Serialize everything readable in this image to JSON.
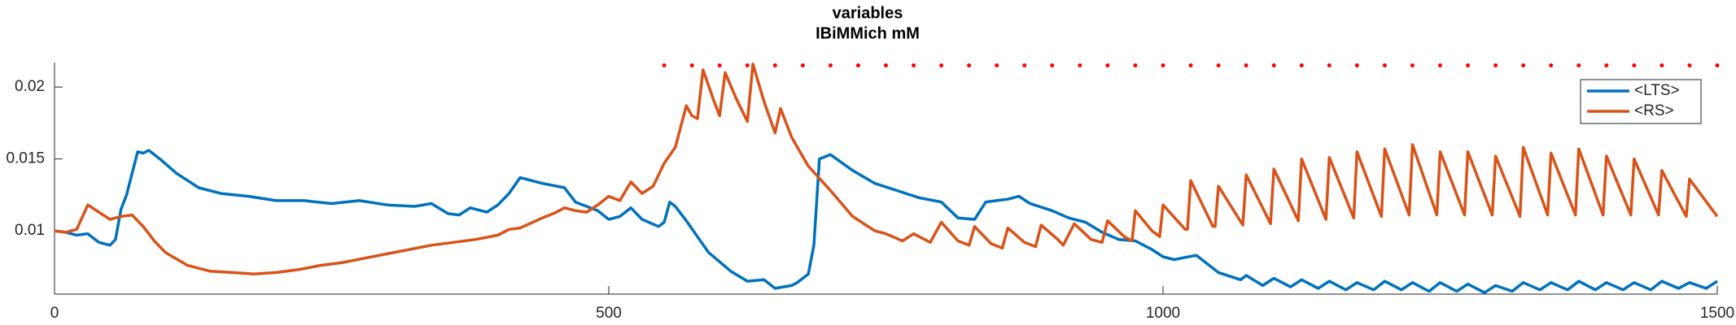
{
  "chart_data": {
    "type": "line",
    "title": "variables",
    "subtitle": "IBiMMich mM",
    "xlim": [
      0,
      1500
    ],
    "xticks": [
      0,
      500,
      1000,
      1500
    ],
    "ylim": [
      0.0056,
      0.0217
    ],
    "yticks": [
      0.01,
      0.015,
      0.02
    ],
    "legend": "upper right",
    "series": [
      {
        "name": "<LTS>",
        "color": "#0072bd",
        "x": [
          0,
          10,
          20,
          30,
          40,
          50,
          55,
          60,
          65,
          70,
          75,
          80,
          85,
          95,
          110,
          130,
          150,
          175,
          200,
          225,
          250,
          275,
          300,
          325,
          340,
          355,
          365,
          375,
          390,
          400,
          410,
          420,
          440,
          460,
          470,
          490,
          500,
          510,
          520,
          530,
          545,
          550,
          555,
          560,
          570,
          590,
          610,
          625,
          640,
          650,
          665,
          670,
          680,
          685,
          690,
          700,
          720,
          740,
          760,
          780,
          800,
          815,
          830,
          840,
          850,
          860,
          870,
          880,
          900,
          915,
          930,
          945,
          960,
          975,
          990,
          1000,
          1010,
          1030,
          1050,
          1070,
          1075,
          1090,
          1100,
          1115,
          1125,
          1140,
          1150,
          1165,
          1175,
          1190,
          1200,
          1215,
          1225,
          1240,
          1250,
          1265,
          1275,
          1290,
          1300,
          1315,
          1325,
          1340,
          1350,
          1365,
          1375,
          1390,
          1400,
          1415,
          1425,
          1440,
          1450,
          1465,
          1475,
          1490,
          1500
        ],
        "values": [
          0.01,
          0.0099,
          0.0097,
          0.0098,
          0.0092,
          0.009,
          0.0094,
          0.0115,
          0.0125,
          0.014,
          0.0155,
          0.0154,
          0.0156,
          0.015,
          0.014,
          0.013,
          0.0126,
          0.0124,
          0.0121,
          0.0121,
          0.0119,
          0.0121,
          0.0118,
          0.0117,
          0.0119,
          0.0112,
          0.0111,
          0.0116,
          0.0113,
          0.0118,
          0.0126,
          0.0137,
          0.0133,
          0.013,
          0.012,
          0.0114,
          0.0108,
          0.011,
          0.0116,
          0.0108,
          0.0103,
          0.0106,
          0.012,
          0.0117,
          0.0107,
          0.0085,
          0.0072,
          0.0065,
          0.0066,
          0.006,
          0.0062,
          0.0064,
          0.007,
          0.009,
          0.015,
          0.0153,
          0.0142,
          0.0133,
          0.0128,
          0.0123,
          0.012,
          0.0109,
          0.0108,
          0.012,
          0.0121,
          0.0122,
          0.0124,
          0.0119,
          0.0114,
          0.0109,
          0.0106,
          0.0099,
          0.0094,
          0.0093,
          0.0087,
          0.0082,
          0.008,
          0.0083,
          0.0071,
          0.0066,
          0.0069,
          0.0062,
          0.0067,
          0.0061,
          0.0066,
          0.006,
          0.0065,
          0.0059,
          0.0064,
          0.0059,
          0.0065,
          0.0059,
          0.0064,
          0.0058,
          0.0064,
          0.0058,
          0.0063,
          0.0057,
          0.0062,
          0.0058,
          0.0064,
          0.0059,
          0.0064,
          0.0059,
          0.0065,
          0.0059,
          0.0064,
          0.0059,
          0.0064,
          0.0059,
          0.0065,
          0.006,
          0.0064,
          0.006,
          0.0065
        ]
      },
      {
        "name": "<RS>",
        "color": "#d95319",
        "x": [
          0,
          10,
          20,
          30,
          40,
          50,
          60,
          70,
          80,
          90,
          100,
          120,
          140,
          160,
          180,
          200,
          220,
          240,
          260,
          280,
          300,
          320,
          340,
          360,
          380,
          400,
          410,
          420,
          440,
          450,
          460,
          470,
          480,
          490,
          500,
          510,
          520,
          530,
          540,
          550,
          560,
          570,
          575,
          580,
          585,
          595,
          600,
          605,
          615,
          625,
          630,
          640,
          650,
          655,
          665,
          680,
          700,
          720,
          740,
          750,
          765,
          775,
          790,
          800,
          815,
          825,
          830,
          845,
          855,
          860,
          875,
          885,
          890,
          905,
          910,
          920,
          935,
          945,
          950,
          965,
          972,
          975,
          990,
          997,
          1000,
          1020,
          1022,
          1025,
          1045,
          1047,
          1050,
          1072,
          1075,
          1097,
          1100,
          1122,
          1125,
          1147,
          1150,
          1172,
          1175,
          1197,
          1200,
          1222,
          1225,
          1247,
          1250,
          1272,
          1275,
          1297,
          1300,
          1322,
          1325,
          1347,
          1350,
          1372,
          1375,
          1397,
          1400,
          1422,
          1425,
          1447,
          1450,
          1472,
          1475,
          1500
        ],
        "values": [
          0.01,
          0.0099,
          0.0101,
          0.0118,
          0.0113,
          0.0108,
          0.011,
          0.0111,
          0.0103,
          0.0093,
          0.0085,
          0.0076,
          0.0072,
          0.0071,
          0.007,
          0.0071,
          0.0073,
          0.0076,
          0.0078,
          0.0081,
          0.0084,
          0.0087,
          0.009,
          0.0092,
          0.0094,
          0.0097,
          0.0101,
          0.0102,
          0.0109,
          0.0112,
          0.0116,
          0.0114,
          0.0113,
          0.0118,
          0.0124,
          0.0121,
          0.0134,
          0.0126,
          0.0131,
          0.0147,
          0.0158,
          0.0187,
          0.018,
          0.0178,
          0.0212,
          0.019,
          0.018,
          0.021,
          0.0192,
          0.0176,
          0.0216,
          0.019,
          0.0168,
          0.0185,
          0.0165,
          0.0145,
          0.0128,
          0.011,
          0.01,
          0.0098,
          0.0093,
          0.0098,
          0.0092,
          0.0106,
          0.0093,
          0.009,
          0.0103,
          0.0091,
          0.0088,
          0.0102,
          0.0092,
          0.0089,
          0.0104,
          0.0094,
          0.009,
          0.0105,
          0.0094,
          0.0092,
          0.0107,
          0.0096,
          0.0093,
          0.0114,
          0.01,
          0.0096,
          0.0118,
          0.0101,
          0.0101,
          0.0135,
          0.0103,
          0.0103,
          0.0131,
          0.0104,
          0.0139,
          0.0105,
          0.0143,
          0.0107,
          0.015,
          0.0108,
          0.0151,
          0.0109,
          0.0155,
          0.011,
          0.0157,
          0.0111,
          0.016,
          0.0111,
          0.0155,
          0.0111,
          0.0155,
          0.0111,
          0.0152,
          0.011,
          0.0158,
          0.0111,
          0.0154,
          0.0111,
          0.0157,
          0.0111,
          0.0152,
          0.0111,
          0.015,
          0.0111,
          0.0142,
          0.011,
          0.0136,
          0.011
        ]
      }
    ],
    "markers": {
      "color": "#ff0000",
      "x": [
        550,
        575,
        600,
        625,
        650,
        675,
        700,
        725,
        750,
        775,
        800,
        825,
        850,
        875,
        900,
        925,
        950,
        975,
        1000,
        1025,
        1050,
        1075,
        1100,
        1125,
        1150,
        1175,
        1200,
        1225,
        1250,
        1275,
        1300,
        1325,
        1350,
        1375,
        1400,
        1425,
        1450,
        1475,
        1500
      ],
      "values": [
        0.0215,
        0.0215,
        0.0215,
        0.0215,
        0.0215,
        0.0215,
        0.0215,
        0.0215,
        0.0215,
        0.0215,
        0.0215,
        0.0215,
        0.0215,
        0.0215,
        0.0215,
        0.0215,
        0.0215,
        0.0215,
        0.0215,
        0.0215,
        0.0215,
        0.0215,
        0.0215,
        0.0215,
        0.0215,
        0.0215,
        0.0215,
        0.0215,
        0.0215,
        0.0215,
        0.0215,
        0.0215,
        0.0215,
        0.0215,
        0.0215,
        0.0215,
        0.0215,
        0.0215,
        0.0215
      ]
    }
  }
}
